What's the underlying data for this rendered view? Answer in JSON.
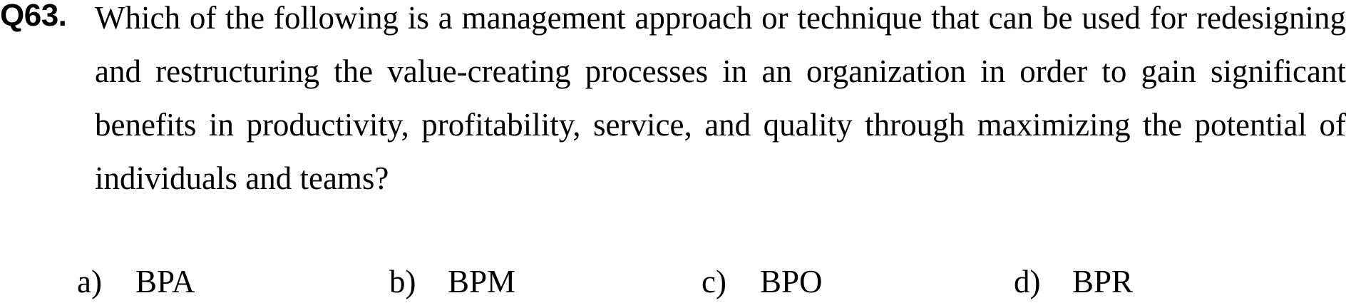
{
  "question": {
    "number": "Q63.",
    "text": "Which of the following is a management approach or technique that can be used for redesigning and restructuring the value-creating processes in an organization in order to gain significant benefits in productivity, profitability, service, and quality through maximizing the potential of individuals and teams?"
  },
  "options": [
    {
      "letter": "a)",
      "text": "BPA"
    },
    {
      "letter": "b)",
      "text": "BPM"
    },
    {
      "letter": "c)",
      "text": "BPO"
    },
    {
      "letter": "d)",
      "text": "BPR"
    }
  ]
}
